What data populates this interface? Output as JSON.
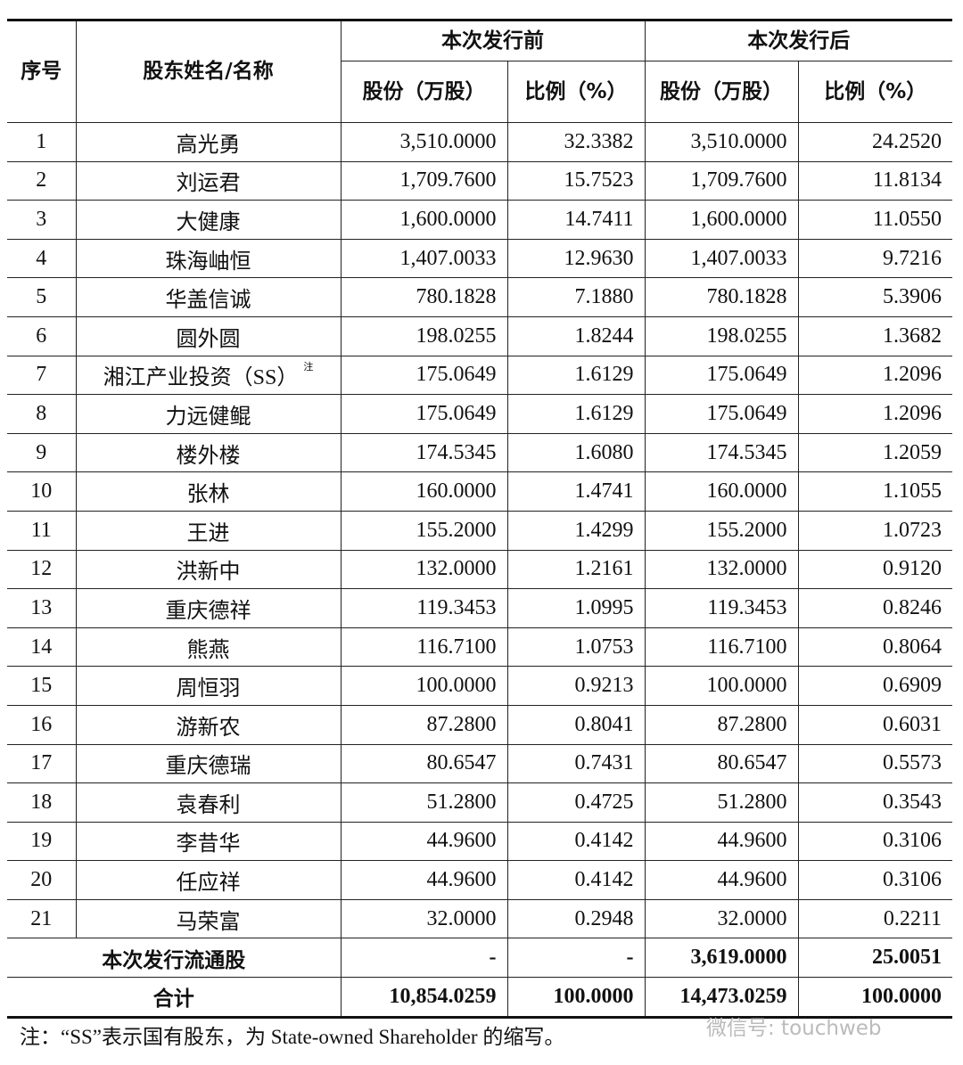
{
  "header": {
    "seq": "序号",
    "name": "股东姓名/名称",
    "before": "本次发行前",
    "after": "本次发行后",
    "shares_before": "股份（万股）",
    "ratio_before": "比例（%）",
    "shares_after": "股份（万股）",
    "ratio_after": "比例（%）"
  },
  "rows": [
    {
      "no": "1",
      "name": "高光勇",
      "sb": "3,510.0000",
      "rb": "32.3382",
      "sa": "3,510.0000",
      "ra": "24.2520"
    },
    {
      "no": "2",
      "name": "刘运君",
      "sb": "1,709.7600",
      "rb": "15.7523",
      "sa": "1,709.7600",
      "ra": "11.8134"
    },
    {
      "no": "3",
      "name": "大健康",
      "sb": "1,600.0000",
      "rb": "14.7411",
      "sa": "1,600.0000",
      "ra": "11.0550"
    },
    {
      "no": "4",
      "name": "珠海岫恒",
      "sb": "1,407.0033",
      "rb": "12.9630",
      "sa": "1,407.0033",
      "ra": "9.7216"
    },
    {
      "no": "5",
      "name": "华盖信诚",
      "sb": "780.1828",
      "rb": "7.1880",
      "sa": "780.1828",
      "ra": "5.3906"
    },
    {
      "no": "6",
      "name": "圆外圆",
      "sb": "198.0255",
      "rb": "1.8244",
      "sa": "198.0255",
      "ra": "1.3682"
    },
    {
      "no": "7",
      "name": "湘江产业投资（SS）",
      "note": "注",
      "sb": "175.0649",
      "rb": "1.6129",
      "sa": "175.0649",
      "ra": "1.2096"
    },
    {
      "no": "8",
      "name": "力远健鲲",
      "sb": "175.0649",
      "rb": "1.6129",
      "sa": "175.0649",
      "ra": "1.2096"
    },
    {
      "no": "9",
      "name": "楼外楼",
      "sb": "174.5345",
      "rb": "1.6080",
      "sa": "174.5345",
      "ra": "1.2059"
    },
    {
      "no": "10",
      "name": "张林",
      "sb": "160.0000",
      "rb": "1.4741",
      "sa": "160.0000",
      "ra": "1.1055"
    },
    {
      "no": "11",
      "name": "王进",
      "sb": "155.2000",
      "rb": "1.4299",
      "sa": "155.2000",
      "ra": "1.0723"
    },
    {
      "no": "12",
      "name": "洪新中",
      "sb": "132.0000",
      "rb": "1.2161",
      "sa": "132.0000",
      "ra": "0.9120"
    },
    {
      "no": "13",
      "name": "重庆德祥",
      "sb": "119.3453",
      "rb": "1.0995",
      "sa": "119.3453",
      "ra": "0.8246"
    },
    {
      "no": "14",
      "name": "熊燕",
      "sb": "116.7100",
      "rb": "1.0753",
      "sa": "116.7100",
      "ra": "0.8064"
    },
    {
      "no": "15",
      "name": "周恒羽",
      "sb": "100.0000",
      "rb": "0.9213",
      "sa": "100.0000",
      "ra": "0.6909"
    },
    {
      "no": "16",
      "name": "游新农",
      "sb": "87.2800",
      "rb": "0.8041",
      "sa": "87.2800",
      "ra": "0.6031"
    },
    {
      "no": "17",
      "name": "重庆德瑞",
      "sb": "80.6547",
      "rb": "0.7431",
      "sa": "80.6547",
      "ra": "0.5573"
    },
    {
      "no": "18",
      "name": "袁春利",
      "sb": "51.2800",
      "rb": "0.4725",
      "sa": "51.2800",
      "ra": "0.3543"
    },
    {
      "no": "19",
      "name": "李昔华",
      "sb": "44.9600",
      "rb": "0.4142",
      "sa": "44.9600",
      "ra": "0.3106"
    },
    {
      "no": "20",
      "name": "任应祥",
      "sb": "44.9600",
      "rb": "0.4142",
      "sa": "44.9600",
      "ra": "0.3106"
    },
    {
      "no": "21",
      "name": "马荣富",
      "sb": "32.0000",
      "rb": "0.2948",
      "sa": "32.0000",
      "ra": "0.2211"
    }
  ],
  "summary": [
    {
      "label": "本次发行流通股",
      "sb": "-",
      "rb": "-",
      "sa": "3,619.0000",
      "ra": "25.0051"
    },
    {
      "label": "合计",
      "sb": "10,854.0259",
      "rb": "100.0000",
      "sa": "14,473.0259",
      "ra": "100.0000"
    }
  ],
  "footnote": "注：“SS”表示国有股东，为 State-owned Shareholder 的缩写。",
  "watermark": "微信号: touchweb"
}
